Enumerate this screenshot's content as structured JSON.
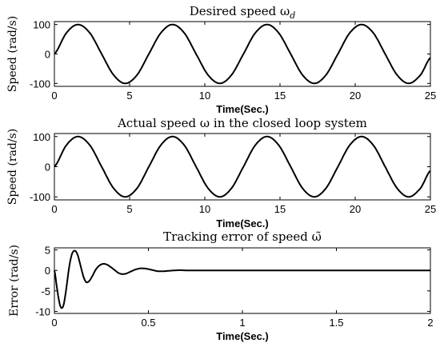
{
  "chart_data": [
    {
      "type": "line",
      "title": "Desired speed ω_d",
      "title_text": "Desired speed ω",
      "title_sub": "d",
      "xlabel": "Time(Sec.)",
      "ylabel": "Speed (rad/s)",
      "xlim": [
        0,
        25
      ],
      "ylim": [
        -110,
        110
      ],
      "xticks": [
        0,
        5,
        10,
        15,
        20,
        25
      ],
      "yticks": [
        100,
        0,
        -100
      ],
      "xtick_labels": [
        "0",
        "5",
        "10",
        "15",
        "20",
        "25"
      ],
      "ytick_labels": [
        "100",
        "0",
        "-100"
      ],
      "grid": false,
      "series": [
        {
          "x": [
            0,
            0.79,
            1.57,
            2.36,
            3.14,
            3.93,
            4.71,
            5.5,
            6.28,
            7.07,
            7.85,
            8.64,
            9.42,
            10.21,
            11.0,
            11.78,
            12.57,
            13.35,
            14.14,
            14.92,
            15.71,
            16.49,
            17.28,
            18.06,
            18.85,
            19.63,
            20.42,
            21.21,
            21.99,
            22.78,
            23.56,
            24.35,
            25.0
          ],
          "y": [
            0,
            71,
            100,
            71,
            0,
            -71,
            -100,
            -71,
            0,
            71,
            100,
            71,
            0,
            -71,
            -100,
            -71,
            0,
            71,
            100,
            71,
            0,
            -71,
            -100,
            -71,
            0,
            71,
            100,
            71,
            0,
            -71,
            -100,
            -71,
            -13
          ]
        }
      ]
    },
    {
      "type": "line",
      "title": "Actual speed ω in the closed loop system",
      "xlabel": "Time(Sec.)",
      "ylabel": "Speed (rad/s)",
      "xlim": [
        0,
        25
      ],
      "ylim": [
        -110,
        110
      ],
      "xticks": [
        0,
        5,
        10,
        15,
        20,
        25
      ],
      "yticks": [
        100,
        0,
        -100
      ],
      "xtick_labels": [
        "0",
        "5",
        "10",
        "15",
        "20",
        "25"
      ],
      "ytick_labels": [
        "100",
        "0",
        "-100"
      ],
      "grid": false,
      "series": [
        {
          "x": [
            0,
            0.79,
            1.57,
            2.36,
            3.14,
            3.93,
            4.71,
            5.5,
            6.28,
            7.07,
            7.85,
            8.64,
            9.42,
            10.21,
            11.0,
            11.78,
            12.57,
            13.35,
            14.14,
            14.92,
            15.71,
            16.49,
            17.28,
            18.06,
            18.85,
            19.63,
            20.42,
            21.21,
            21.99,
            22.78,
            23.56,
            24.35,
            25.0
          ],
          "y": [
            0,
            71,
            100,
            71,
            0,
            -71,
            -100,
            -71,
            0,
            71,
            100,
            71,
            0,
            -71,
            -100,
            -71,
            0,
            71,
            100,
            71,
            0,
            -71,
            -100,
            -71,
            0,
            71,
            100,
            71,
            0,
            -71,
            -100,
            -71,
            -13
          ]
        }
      ]
    },
    {
      "type": "line",
      "title": "Tracking error of speed ω̃",
      "title_text": "Tracking error of speed ω̃",
      "xlabel": "Time(Sec.)",
      "ylabel": "Error (rad/s)",
      "xlim": [
        0,
        2
      ],
      "ylim": [
        -10.5,
        5.5
      ],
      "xticks": [
        0,
        0.5,
        1,
        1.5,
        2
      ],
      "yticks": [
        5,
        0,
        -5,
        -10
      ],
      "xtick_labels": [
        "0",
        "0.5",
        "1",
        "1.5",
        "2"
      ],
      "ytick_labels": [
        "5",
        "0",
        "-5",
        "-10"
      ],
      "grid": false,
      "series": [
        {
          "x": [
            0,
            0.01,
            0.02,
            0.03,
            0.04,
            0.05,
            0.06,
            0.07,
            0.08,
            0.09,
            0.1,
            0.11,
            0.12,
            0.13,
            0.14,
            0.15,
            0.16,
            0.17,
            0.18,
            0.19,
            0.2,
            0.22,
            0.24,
            0.26,
            0.28,
            0.3,
            0.32,
            0.34,
            0.36,
            0.38,
            0.4,
            0.43,
            0.46,
            0.49,
            0.52,
            0.55,
            0.58,
            0.61,
            0.64,
            0.67,
            0.7,
            0.8,
            1.0,
            1.5,
            2.0
          ],
          "y": [
            0,
            -3,
            -6.2,
            -8.5,
            -9.2,
            -8.2,
            -5.5,
            -2,
            1.2,
            3.5,
            4.6,
            4.8,
            4.2,
            2.8,
            1,
            -0.8,
            -2.2,
            -2.9,
            -2.8,
            -2.3,
            -1.5,
            0.2,
            1.2,
            1.6,
            1.4,
            0.8,
            0.1,
            -0.6,
            -0.9,
            -0.8,
            -0.4,
            0.2,
            0.5,
            0.4,
            0.1,
            -0.2,
            -0.2,
            -0.1,
            0,
            0.05,
            0,
            0,
            0,
            0,
            0
          ]
        }
      ]
    }
  ]
}
